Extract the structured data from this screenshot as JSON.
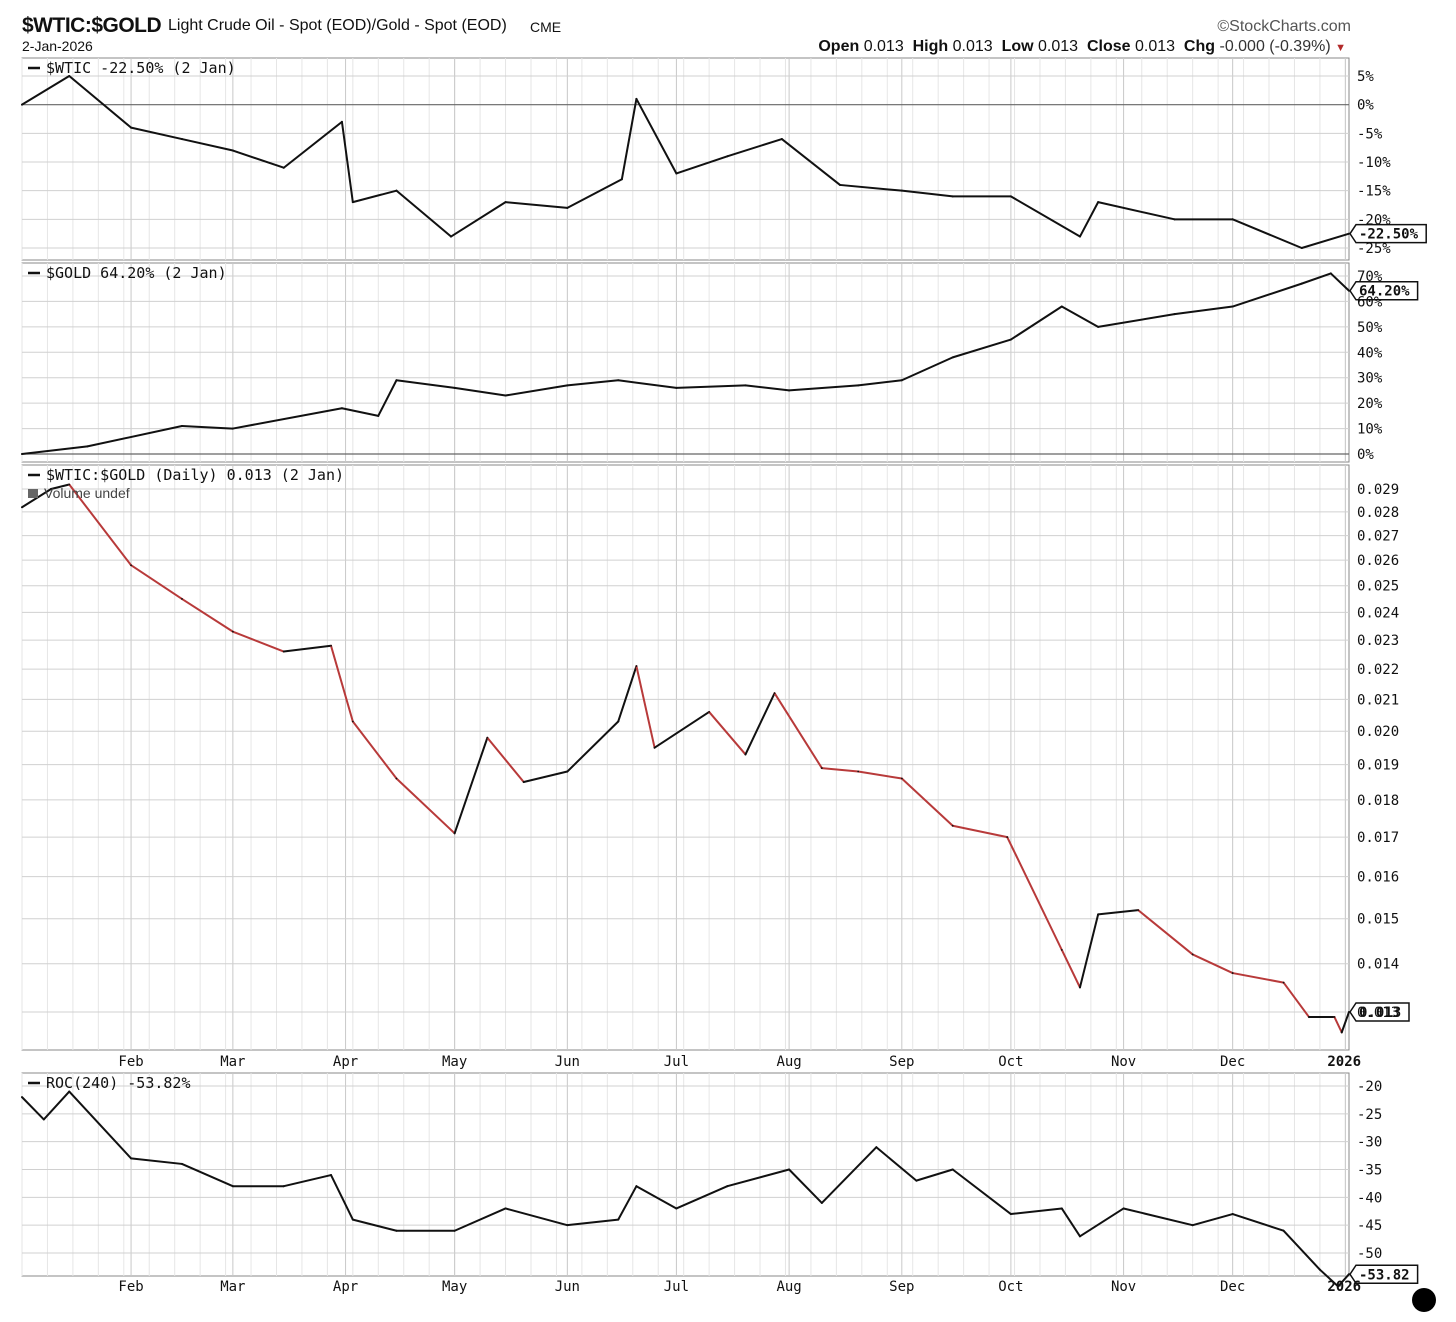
{
  "header": {
    "symbol": "$WTIC:$GOLD",
    "description": "Light Crude Oil - Spot (EOD)/Gold - Spot (EOD)",
    "exchange": "CME",
    "date": "2-Jan-2026",
    "brand": "©StockCharts.com",
    "open_label": "Open",
    "open": "0.013",
    "high_label": "High",
    "high": "0.013",
    "low_label": "Low",
    "low": "0.013",
    "close_label": "Close",
    "close": "0.013",
    "chg_label": "Chg",
    "chg": "-0.000 (-0.39%)"
  },
  "x_axis_labels": [
    "Feb",
    "Mar",
    "Apr",
    "May",
    "Jun",
    "Jul",
    "Aug",
    "Sep",
    "Oct",
    "Nov",
    "Dec",
    "2026"
  ],
  "chart_data": [
    {
      "type": "line",
      "panel": "wtic",
      "legend": "$WTIC -22.50% (2 Jan)",
      "y_tick_labels": [
        "5%",
        "0%",
        "-5%",
        "-10%",
        "-15%",
        "-20%",
        "-25%"
      ],
      "ylim": [
        -25,
        5
      ],
      "last_value_label": "-22.50%",
      "x": [
        "2025-01-02",
        "2025-01-15",
        "2025-02-01",
        "2025-02-15",
        "2025-03-01",
        "2025-03-15",
        "2025-03-31",
        "2025-04-03",
        "2025-04-15",
        "2025-04-30",
        "2025-05-15",
        "2025-06-01",
        "2025-06-16",
        "2025-06-20",
        "2025-07-01",
        "2025-07-15",
        "2025-07-30",
        "2025-08-15",
        "2025-09-01",
        "2025-09-15",
        "2025-10-01",
        "2025-10-20",
        "2025-10-25",
        "2025-11-15",
        "2025-12-01",
        "2025-12-20",
        "2026-01-02"
      ],
      "y": [
        0,
        5,
        -4,
        -6,
        -8,
        -11,
        -3,
        -17,
        -15,
        -23,
        -17,
        -18,
        -13,
        1,
        -12,
        -9,
        -6,
        -14,
        -15,
        -16,
        -16,
        -23,
        -17,
        -20,
        -20,
        -25,
        -22.5
      ],
      "color": "#111111"
    },
    {
      "type": "line",
      "panel": "gold",
      "legend": "$GOLD 64.20% (2 Jan)",
      "y_tick_labels": [
        "70%",
        "60%",
        "50%",
        "40%",
        "30%",
        "20%",
        "10%",
        "0%"
      ],
      "ylim": [
        0,
        70
      ],
      "last_value_label": "64.20%",
      "x": [
        "2025-01-02",
        "2025-01-20",
        "2025-02-15",
        "2025-03-01",
        "2025-03-31",
        "2025-04-10",
        "2025-04-15",
        "2025-05-01",
        "2025-05-15",
        "2025-06-01",
        "2025-06-15",
        "2025-07-01",
        "2025-07-20",
        "2025-08-01",
        "2025-08-20",
        "2025-09-01",
        "2025-09-15",
        "2025-10-01",
        "2025-10-15",
        "2025-10-25",
        "2025-11-15",
        "2025-12-01",
        "2025-12-20",
        "2025-12-28",
        "2026-01-02"
      ],
      "y": [
        0,
        3,
        11,
        10,
        18,
        15,
        29,
        26,
        23,
        27,
        29,
        26,
        27,
        25,
        27,
        29,
        38,
        45,
        58,
        50,
        55,
        58,
        67,
        71,
        64.2
      ],
      "color": "#111111"
    },
    {
      "type": "line",
      "panel": "ratio",
      "legend": "$WTIC:$GOLD (Daily) 0.013 (2 Jan)",
      "sublegend": "Volume undef",
      "y_tick_labels": [
        "0.029",
        "0.028",
        "0.027",
        "0.026",
        "0.025",
        "0.024",
        "0.023",
        "0.022",
        "0.021",
        "0.020",
        "0.019",
        "0.018",
        "0.017",
        "0.016",
        "0.015",
        "0.014",
        "0.013"
      ],
      "y_scale": "log",
      "ylim": [
        0.0124,
        0.0297
      ],
      "last_value_label": "0.013",
      "x": [
        "2025-01-02",
        "2025-01-10",
        "2025-01-15",
        "2025-02-01",
        "2025-02-15",
        "2025-03-01",
        "2025-03-15",
        "2025-03-28",
        "2025-04-03",
        "2025-04-15",
        "2025-05-01",
        "2025-05-10",
        "2025-05-20",
        "2025-06-01",
        "2025-06-15",
        "2025-06-20",
        "2025-06-25",
        "2025-07-10",
        "2025-07-20",
        "2025-07-28",
        "2025-08-10",
        "2025-08-20",
        "2025-09-01",
        "2025-09-15",
        "2025-09-30",
        "2025-10-15",
        "2025-10-20",
        "2025-10-25",
        "2025-11-05",
        "2025-11-20",
        "2025-12-01",
        "2025-12-15",
        "2025-12-22",
        "2025-12-29",
        "2025-12-31",
        "2026-01-02"
      ],
      "y": [
        0.0282,
        0.029,
        0.0292,
        0.0258,
        0.0245,
        0.0233,
        0.0226,
        0.0228,
        0.0203,
        0.0186,
        0.0171,
        0.0198,
        0.0185,
        0.0188,
        0.0203,
        0.0221,
        0.0195,
        0.0206,
        0.0193,
        0.0212,
        0.0189,
        0.0188,
        0.0186,
        0.0173,
        0.017,
        0.0143,
        0.0135,
        0.0151,
        0.0152,
        0.0142,
        0.0138,
        0.0136,
        0.0129,
        0.0129,
        0.0126,
        0.013
      ],
      "color": "#111111",
      "down_color": "#b83a3a"
    },
    {
      "type": "line",
      "panel": "roc",
      "legend": "ROC(240) -53.82%",
      "y_tick_labels": [
        "-20",
        "-25",
        "-30",
        "-35",
        "-40",
        "-45",
        "-50"
      ],
      "ylim": [
        -55,
        -20
      ],
      "last_value_label": "-53.82",
      "x": [
        "2025-01-02",
        "2025-01-08",
        "2025-01-15",
        "2025-02-01",
        "2025-02-15",
        "2025-03-01",
        "2025-03-15",
        "2025-03-28",
        "2025-04-03",
        "2025-04-15",
        "2025-05-01",
        "2025-05-15",
        "2025-06-01",
        "2025-06-15",
        "2025-06-20",
        "2025-07-01",
        "2025-07-15",
        "2025-08-01",
        "2025-08-10",
        "2025-08-25",
        "2025-09-05",
        "2025-09-15",
        "2025-10-01",
        "2025-10-15",
        "2025-10-20",
        "2025-11-01",
        "2025-11-20",
        "2025-12-01",
        "2025-12-15",
        "2025-12-25",
        "2025-12-30",
        "2026-01-02"
      ],
      "y": [
        -22,
        -26,
        -21,
        -33,
        -34,
        -38,
        -38,
        -36,
        -44,
        -46,
        -46,
        -42,
        -45,
        -44,
        -38,
        -42,
        -38,
        -35,
        -41,
        -31,
        -37,
        -35,
        -43,
        -42,
        -47,
        -42,
        -45,
        -43,
        -46,
        -53,
        -56,
        -53.8
      ],
      "color": "#111111"
    }
  ]
}
